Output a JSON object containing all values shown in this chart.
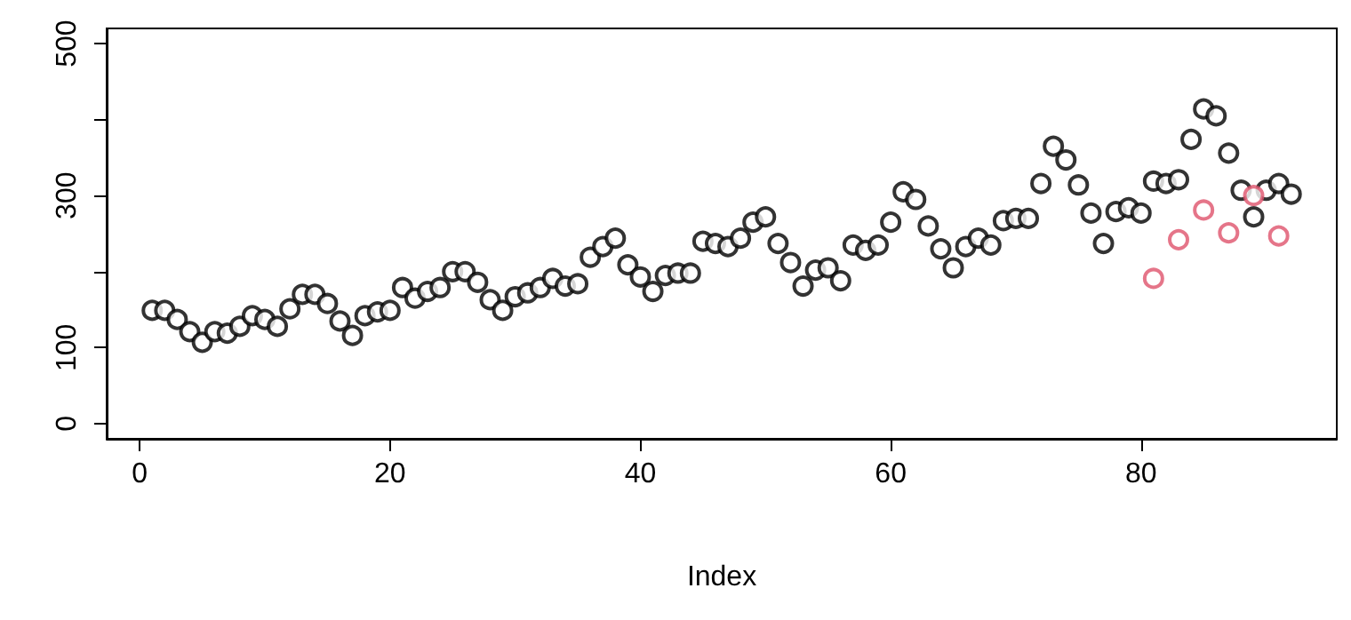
{
  "chart_data": {
    "type": "scatter",
    "xlabel": "Index",
    "xlim": [
      -2.64,
      95.64
    ],
    "xticks": [
      0,
      20,
      40,
      60,
      80
    ],
    "ylim": [
      -20,
      520
    ],
    "yticks": [
      0,
      100,
      {
        "value": 200,
        "label": null
      },
      300,
      {
        "value": 400,
        "label": null
      },
      500
    ],
    "grid": false,
    "marker": "circle",
    "series": [
      {
        "color": "#000000",
        "x": [
          1,
          2,
          3,
          4,
          5,
          6,
          7,
          8,
          9,
          10,
          11,
          12,
          13,
          14,
          15,
          16,
          17,
          18,
          19,
          20,
          21,
          22,
          23,
          24,
          25,
          26,
          27,
          28,
          29,
          30,
          31,
          32,
          33,
          34,
          35,
          36,
          37,
          38,
          39,
          40,
          41,
          42,
          43,
          44,
          45,
          46,
          47,
          48,
          49,
          50,
          51,
          52,
          53,
          54,
          55,
          56,
          57,
          58,
          59,
          60,
          61,
          62,
          63,
          64,
          65,
          66,
          67,
          68,
          69,
          70,
          71,
          72,
          73,
          74,
          75,
          76,
          77,
          78,
          79,
          80,
          81,
          82,
          83,
          84,
          85,
          86,
          87,
          88,
          89,
          90,
          91,
          92
        ],
        "values": [
          149,
          149,
          137,
          121,
          107,
          121,
          119,
          128,
          142,
          137,
          128,
          151,
          170,
          170,
          158,
          135,
          116,
          142,
          147,
          149,
          179,
          165,
          174,
          179,
          200,
          200,
          186,
          163,
          149,
          167,
          172,
          179,
          191,
          181,
          184,
          219,
          233,
          244,
          209,
          193,
          174,
          195,
          198,
          198,
          240,
          237,
          233,
          244,
          265,
          272,
          237,
          212,
          181,
          202,
          205,
          188,
          235,
          228,
          235,
          265,
          305,
          295,
          260,
          230,
          205,
          233,
          244,
          235,
          267,
          270,
          270,
          316,
          365,
          347,
          314,
          277,
          237,
          279,
          284,
          277,
          319,
          316,
          321,
          374,
          414,
          405,
          356,
          307,
          272,
          307,
          316,
          302
        ]
      },
      {
        "color": "#df536b",
        "x": [
          81,
          83,
          85,
          87,
          89,
          91
        ],
        "values": [
          191,
          242,
          281,
          251,
          300,
          247
        ]
      }
    ]
  }
}
